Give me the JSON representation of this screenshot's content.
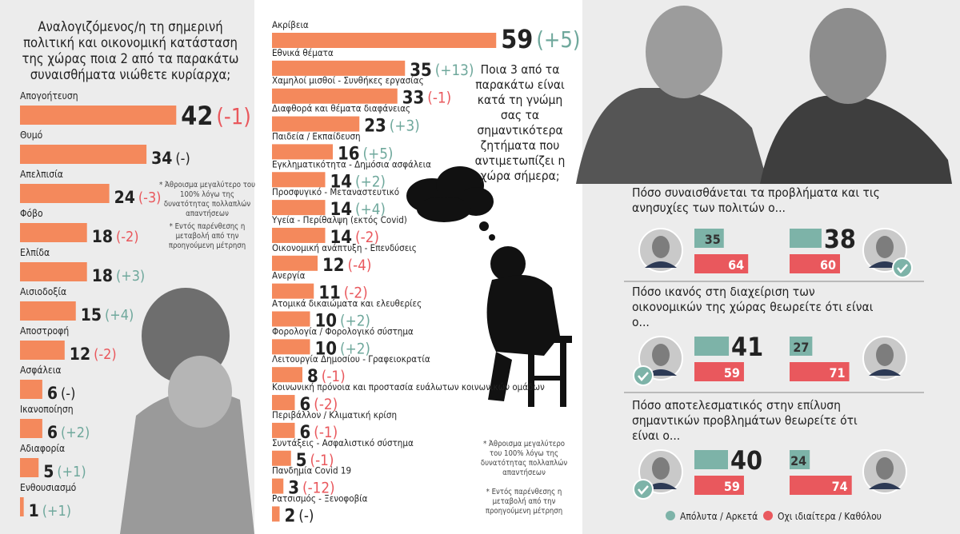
{
  "chart_data": [
    {
      "type": "bar",
      "title": "Αναλογιζόμενος/η τη σημερινή πολιτική και οικονομική κατάσταση της χώρας ποια 2 από τα παρακάτω συναισθήματα νιώθετε κυρίαρχα;",
      "categories": [
        "Απογοήτευση",
        "Θυμό",
        "Απελπισία",
        "Φόβο",
        "Ελπίδα",
        "Αισιοδοξία",
        "Αποστροφή",
        "Ασφάλεια",
        "Ικανοποίηση",
        "Αδιαφορία",
        "Ενθουσιασμό"
      ],
      "values": [
        42,
        34,
        24,
        18,
        18,
        15,
        12,
        6,
        6,
        5,
        1
      ],
      "change_labels": [
        "(-1)",
        "(-)",
        "(-3)",
        "(-2)",
        "(+3)",
        "(+4)",
        "(-2)",
        "(-)",
        "(+2)",
        "(+1)",
        "(+1)"
      ],
      "color": "#f4895c",
      "notes": [
        "* Άθροισμα μεγαλύτερο του 100% λόγω της δυνατότητας πολλαπλών απαντήσεων",
        "* Εντός παρένθεσης η μεταβολή από την προηγούμενη μέτρηση"
      ]
    },
    {
      "type": "bar",
      "title": "Ποια 3 από τα παρακάτω είναι κατά τη γνώμη σας τα σημαντικότερα ζητήματα που αντιμετωπίζει η χώρα σήμερα;",
      "categories": [
        "Ακρίβεια",
        "Εθνικά θέματα",
        "Χαμηλοί μισθοί - Συνθήκες εργασίας",
        "Διαφθορά και θέματα διαφάνειας",
        "Παιδεία / Εκπαίδευση",
        "Εγκληματικότητα - Δημόσια ασφάλεια",
        "Προσφυγικό - Μεταναστευτικό",
        "Υγεία - Περίθαλψη (εκτός Covid)",
        "Οικονομική ανάπτυξη - Επενδύσεις",
        "Ανεργία",
        "Ατομικά δικαιώματα και ελευθερίες",
        "Φορολογία / Φορολογικό σύστημα",
        "Λειτουργία Δημοσίου - Γραφειοκρατία",
        "Κοινωνική πρόνοια και προστασία ευάλωτων κοινωνικών ομάδων",
        "Περιβάλλον / Κλιματική κρίση",
        "Συντάξεις - Ασφαλιστικό σύστημα",
        "Πανδημία Covid 19",
        "Ρατσισμός - Ξενοφοβία"
      ],
      "values": [
        59,
        35,
        33,
        23,
        16,
        14,
        14,
        14,
        12,
        11,
        10,
        10,
        8,
        6,
        6,
        5,
        3,
        2
      ],
      "change_labels": [
        "(+5)",
        "(+13)",
        "(-1)",
        "(+3)",
        "(+5)",
        "(+2)",
        "(+4)",
        "(-2)",
        "(-4)",
        "(-2)",
        "(+2)",
        "(+2)",
        "(-1)",
        "(-2)",
        "(-1)",
        "(-1)",
        "(-12)",
        "(-)"
      ],
      "color": "#f4895c",
      "notes": [
        "* Άθροισμα μεγαλύτερο του 100% λόγω της δυνατότητας πολλαπλών απαντήσεων",
        "* Εντός παρένθεσης η μεταβολή από την προηγούμενη μέτρηση"
      ]
    },
    {
      "type": "paired-bar",
      "series": [
        {
          "name": "Απόλυτα / Αρκετά",
          "color": "#7db3a8"
        },
        {
          "name": "Οχι ιδιαίτερα / Καθόλου",
          "color": "#e9585d"
        }
      ],
      "questions": [
        {
          "title": "Πόσο συναισθάνεται τα προβλήματα και τις ανησυχίες των πολιτών ο...",
          "values": [
            [
              35,
              64
            ],
            [
              38,
              60
            ]
          ],
          "check": 1
        },
        {
          "title": "Πόσο ικανός στη διαχείριση των οικονομικών της χώρας θεωρείτε ότι είναι ο...",
          "values": [
            [
              41,
              59
            ],
            [
              27,
              71
            ]
          ],
          "check": 0
        },
        {
          "title": "Πόσο αποτελεσματικός στην επίλυση σημαντικών προβλημάτων θεωρείτε ότι είναι ο...",
          "values": [
            [
              40,
              59
            ],
            [
              24,
              74
            ]
          ],
          "check": 0
        }
      ]
    }
  ]
}
